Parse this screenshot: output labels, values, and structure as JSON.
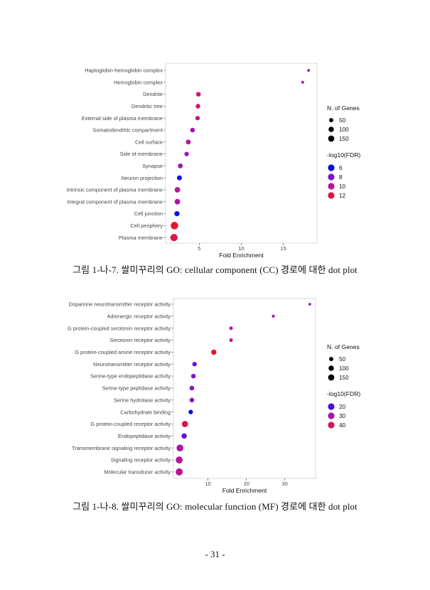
{
  "chart_data": [
    {
      "type": "scatter",
      "title": "",
      "xlabel": "Fold Enrichment",
      "ylabel": "",
      "xlim": [
        1,
        19
      ],
      "xticks": [
        5,
        10,
        15
      ],
      "grid": false,
      "legend_position": "right",
      "categories": [
        "Haptoglobin-hemoglobin complex",
        "Hemoglobin complex",
        "Dendrite",
        "Dendritic tree",
        "External side of plasma membrane",
        "Somatodendritic compartment",
        "Cell surface",
        "Side of membrane",
        "Synapse",
        "Neuron projection",
        "Intrinsic component of plasma membrane",
        "Integral component of plasma membrane",
        "Cell junction",
        "Cell periphery",
        "Plasma membrane"
      ],
      "fold_enrichment": [
        18.0,
        17.3,
        4.9,
        4.85,
        4.8,
        4.2,
        3.7,
        3.5,
        2.75,
        2.65,
        2.4,
        2.4,
        2.35,
        2.05,
        2.0
      ],
      "n_genes": [
        3,
        5,
        40,
        40,
        35,
        40,
        45,
        35,
        45,
        50,
        70,
        70,
        55,
        160,
        150
      ],
      "neg_log10_fdr": [
        7.8,
        10.0,
        11.0,
        11.0,
        10.5,
        9.0,
        10.0,
        9.0,
        9.0,
        6.2,
        10.0,
        9.5,
        6.0,
        12.5,
        12.0
      ],
      "color_range": [
        6,
        12.5
      ],
      "legend_size": {
        "title": "N. of Genes",
        "values": [
          50,
          100,
          150
        ]
      },
      "legend_color": {
        "title": "-log10(FDR)",
        "values": [
          6,
          8,
          10,
          12
        ]
      }
    },
    {
      "type": "scatter",
      "title": "",
      "xlabel": "Fold Enrichment",
      "ylabel": "",
      "xlim": [
        1,
        38
      ],
      "xticks": [
        10,
        20,
        30
      ],
      "grid": false,
      "legend_position": "right",
      "categories": [
        "Dopamine neurotransmitter receptor activity",
        "Adrenergic receptor activity",
        "G protein-coupled serotonin receptor activity",
        "Serotonin receptor activity",
        "G protein-coupled amine receptor activity",
        "Neurotransmitter receptor activity",
        "Serine-type endopeptidase activity",
        "Serine-type peptidase activity",
        "Serine hydrolase activity",
        "Carbohydrate binding",
        "G protein-coupled receptor activity",
        "Endopeptidase activity",
        "Transmembrane signaling receptor activity",
        "Signaling receptor activity",
        "Molecular transducer activity"
      ],
      "fold_enrichment": [
        36.5,
        27.0,
        16.0,
        16.0,
        11.5,
        6.5,
        6.2,
        5.8,
        5.8,
        5.5,
        4.0,
        3.8,
        2.7,
        2.5,
        2.5
      ],
      "n_genes": [
        3,
        6,
        15,
        15,
        60,
        35,
        40,
        42,
        42,
        35,
        100,
        60,
        130,
        135,
        140
      ],
      "neg_log10_fdr": [
        25,
        30,
        33,
        33,
        45,
        22,
        25,
        25,
        26,
        15,
        42,
        22,
        32,
        33,
        33
      ],
      "color_range": [
        15,
        45
      ],
      "legend_size": {
        "title": "N. of Genes",
        "values": [
          50,
          100,
          150
        ]
      },
      "legend_color": {
        "title": "-log10(FDR)",
        "values": [
          20,
          30,
          40
        ]
      }
    }
  ],
  "captions": [
    "그림 1-나-7. 쌀미꾸리의 GO: cellular component (CC) 경로에 대한 dot plot",
    "그림 1-나-8. 쌀미꾸리의 GO: molecular function (MF) 경로에 대한 dot plot"
  ],
  "page_number": "- 31 -"
}
